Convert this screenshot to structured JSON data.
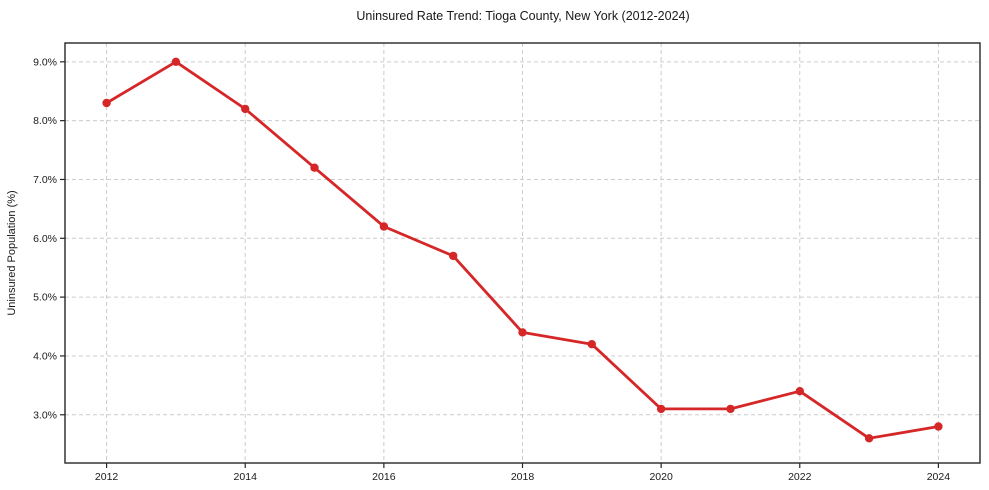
{
  "title": "Uninsured Rate Trend: Tioga County, New York (2012-2024)",
  "chart_data": {
    "type": "line",
    "title": "Uninsured Rate Trend: Tioga County, New York (2012-2024)",
    "xlabel": "",
    "ylabel": "Uninsured Population (%)",
    "x": [
      2012,
      2013,
      2014,
      2015,
      2016,
      2017,
      2018,
      2019,
      2020,
      2021,
      2022,
      2023,
      2024
    ],
    "values": [
      8.3,
      9.0,
      8.2,
      7.2,
      6.2,
      5.7,
      4.4,
      4.2,
      3.1,
      3.1,
      3.4,
      2.6,
      2.8
    ],
    "series_name": "Uninsured rate (%)",
    "xticks": [
      2012,
      2014,
      2016,
      2018,
      2020,
      2022,
      2024
    ],
    "xtick_labels": [
      "2012",
      "2014",
      "2016",
      "2018",
      "2020",
      "2022",
      "2024"
    ],
    "yticks": [
      3,
      4,
      5,
      6,
      7,
      8,
      9
    ],
    "ytick_labels": [
      "3.0%",
      "4.0%",
      "5.0%",
      "6.0%",
      "7.0%",
      "8.0%",
      "9.0%"
    ],
    "xlim": [
      2011.4,
      2024.6
    ],
    "ylim": [
      2.18,
      9.32
    ],
    "grid": true,
    "grid_style": "dashed",
    "legend_position": "none",
    "colors": {
      "line": "#d62728",
      "marker": "#d62728",
      "grid": "#cccccc",
      "axis": "#262626",
      "text": "#1a1a1a",
      "background": "#ffffff"
    }
  }
}
